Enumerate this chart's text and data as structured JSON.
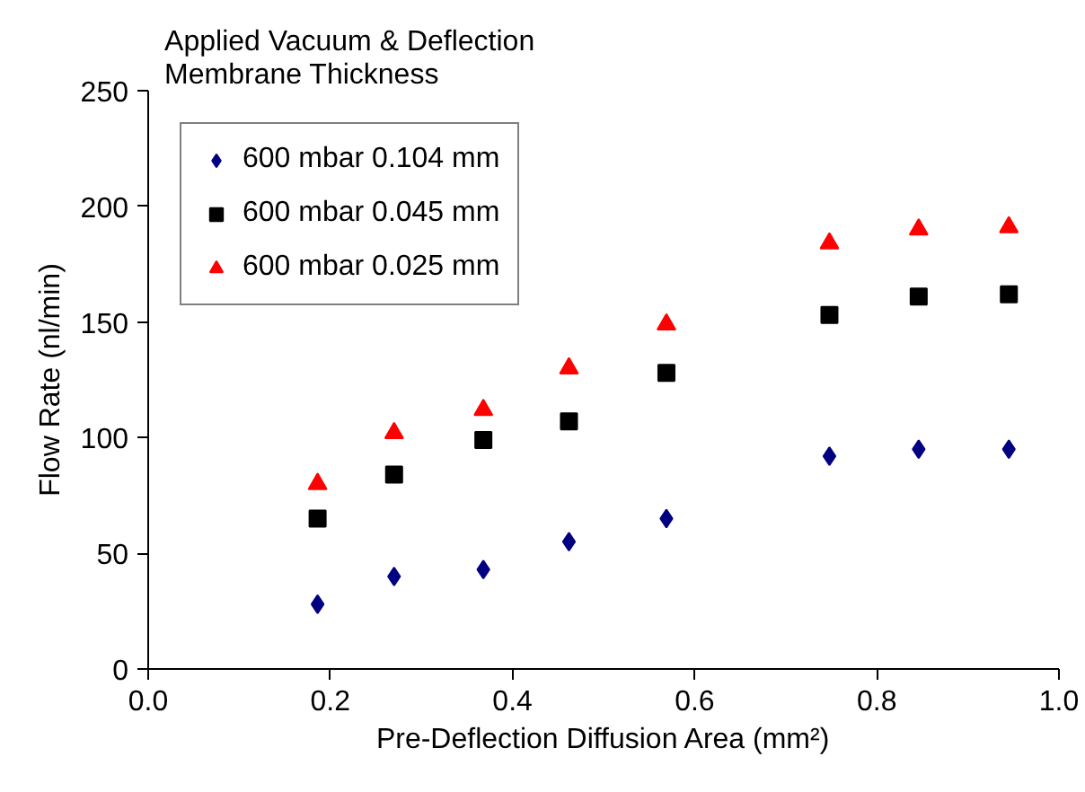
{
  "chart_data": {
    "type": "scatter",
    "legend_title": "Applied Vacuum & Deflection\nMembrane Thickness",
    "xlabel": "Pre-Deflection Diffusion Area (mm²)",
    "ylabel": "Flow Rate (nl/min)",
    "series": [
      {
        "name": "600 mbar 0.104 mm",
        "color": "#000080",
        "marker": "diamond",
        "x": [
          0.186,
          0.27,
          0.368,
          0.462,
          0.569,
          0.748,
          0.846,
          0.945
        ],
        "values": [
          28,
          40,
          43,
          55,
          65,
          92,
          95,
          95
        ]
      },
      {
        "name": "600 mbar 0.045 mm",
        "color": "#000000",
        "marker": "square",
        "x": [
          0.186,
          0.27,
          0.368,
          0.462,
          0.569,
          0.748,
          0.846,
          0.945
        ],
        "values": [
          65,
          84,
          99,
          107,
          128,
          153,
          161,
          162
        ]
      },
      {
        "name": "600 mbar 0.025 mm",
        "color": "#ff0000",
        "marker": "triangle",
        "x": [
          0.186,
          0.27,
          0.368,
          0.462,
          0.569,
          0.748,
          0.846,
          0.945
        ],
        "values": [
          80,
          102,
          112,
          130,
          149,
          184,
          190,
          191
        ]
      }
    ],
    "xlim": [
      0,
      1
    ],
    "xticks": [
      {
        "value": 0,
        "label": "0.0"
      },
      {
        "value": 0.2,
        "label": "0.2"
      },
      {
        "value": 0.4,
        "label": "0.4"
      },
      {
        "value": 0.6,
        "label": "0.6"
      },
      {
        "value": 0.8,
        "label": "0.8"
      },
      {
        "value": 1,
        "label": "1.0"
      }
    ],
    "ylim": [
      0,
      250
    ],
    "yticks": [
      0,
      50,
      100,
      150,
      200,
      250
    ],
    "grid": false,
    "legend": "top left"
  }
}
